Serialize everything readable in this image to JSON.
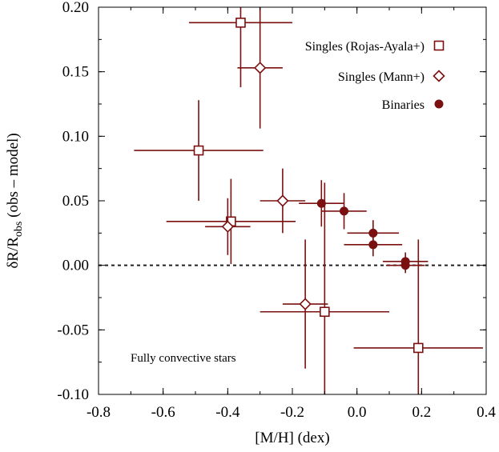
{
  "chart_data": {
    "type": "scatter",
    "xlabel": "[M/H] (dex)",
    "ylabel_main": "δR/R",
    "ylabel_sub": "obs",
    "ylabel_rest": " (obs – model)",
    "xlim": [
      -0.8,
      0.4
    ],
    "ylim": [
      -0.1,
      0.2
    ],
    "x_ticks": [
      -0.8,
      -0.6,
      -0.4,
      -0.2,
      0.0,
      0.2,
      0.4
    ],
    "x_tick_labels": [
      "-0.8",
      "-0.6",
      "-0.4",
      "-0.2",
      "0.0",
      "0.2",
      "0.4"
    ],
    "y_ticks": [
      -0.1,
      -0.05,
      0.0,
      0.05,
      0.1,
      0.15,
      0.2
    ],
    "y_tick_labels": [
      "-0.10",
      "-0.05",
      "0.00",
      "0.05",
      "0.10",
      "0.15",
      "0.20"
    ],
    "reference_line_y": 0.0,
    "annotation": "Fully convective stars",
    "legend_position": "top-right",
    "color": "#7a1010",
    "series": [
      {
        "name": "Singles (Rojas-Ayala+)",
        "marker": "square-open",
        "points": [
          {
            "x": -0.36,
            "y": 0.188,
            "xerr": 0.16,
            "yerr": 0.05
          },
          {
            "x": -0.49,
            "y": 0.089,
            "xerr": 0.2,
            "yerr": 0.039
          },
          {
            "x": -0.39,
            "y": 0.034,
            "xerr": 0.2,
            "yerr": 0.033
          },
          {
            "x": -0.1,
            "y": -0.036,
            "xerr": 0.2,
            "yerr": 0.1
          },
          {
            "x": 0.19,
            "y": -0.064,
            "xerr": 0.2,
            "yerr": 0.084
          }
        ]
      },
      {
        "name": "Singles (Mann+)",
        "marker": "diamond-open",
        "points": [
          {
            "x": -0.3,
            "y": 0.153,
            "xerr": 0.07,
            "yerr": 0.047
          },
          {
            "x": -0.23,
            "y": 0.05,
            "xerr": 0.07,
            "yerr": 0.025
          },
          {
            "x": -0.4,
            "y": 0.03,
            "xerr": 0.07,
            "yerr": 0.022
          },
          {
            "x": -0.16,
            "y": -0.03,
            "xerr": 0.07,
            "yerr": 0.05
          }
        ]
      },
      {
        "name": "Binaries",
        "marker": "circle-filled",
        "points": [
          {
            "x": -0.11,
            "y": 0.048,
            "xerr": 0.07,
            "yerr": 0.018
          },
          {
            "x": -0.04,
            "y": 0.042,
            "xerr": 0.07,
            "yerr": 0.014
          },
          {
            "x": 0.05,
            "y": 0.025,
            "xerr": 0.08,
            "yerr": 0.01
          },
          {
            "x": 0.05,
            "y": 0.016,
            "xerr": 0.09,
            "yerr": 0.009
          },
          {
            "x": 0.15,
            "y": 0.003,
            "xerr": 0.07,
            "yerr": 0.007
          },
          {
            "x": 0.15,
            "y": 0.0,
            "xerr": 0.06,
            "yerr": 0.006
          }
        ]
      }
    ]
  }
}
